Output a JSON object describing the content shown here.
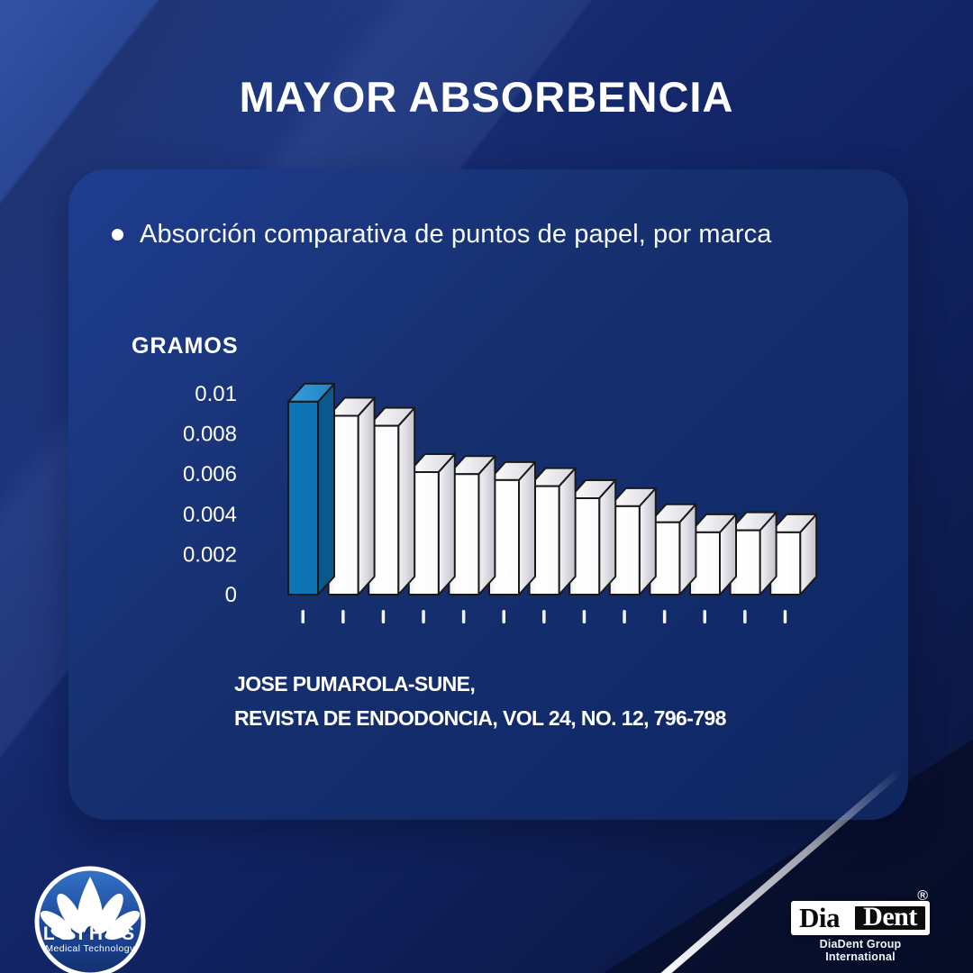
{
  "page": {
    "title": "MAYOR ABSORBENCIA"
  },
  "card": {
    "bullet_text": "Absorción comparativa de puntos de papel, por marca",
    "citation_line1": "JOSE PUMAROLA-SUNE,",
    "citation_line2": "REVISTA DE ENDODONCIA, VOL 24, NO. 12, 796-798"
  },
  "chart_data": {
    "type": "bar",
    "title": "Absorción comparativa de puntos de papel, por marca",
    "ylabel": "GRAMOS",
    "unit": "gramos",
    "ylim": [
      0,
      0.01
    ],
    "yticks": [
      0,
      0.002,
      0.004,
      0.006,
      0.008,
      0.01
    ],
    "ytick_labels": [
      "0",
      "0.002",
      "0.004",
      "0.006",
      "0.008",
      "0.01"
    ],
    "x_tick_labels": [
      "",
      "",
      "",
      "",
      "",
      "",
      "",
      "",
      "",
      "",
      "",
      "",
      ""
    ],
    "values": [
      0.0096,
      0.0089,
      0.0084,
      0.0061,
      0.006,
      0.0057,
      0.0054,
      0.0048,
      0.0044,
      0.0036,
      0.0031,
      0.0032,
      0.0031
    ],
    "highlight_index": 0,
    "grid": false,
    "legend_position": "none",
    "style": "3d-bars",
    "note": "first (blue) bar is the highlighted brand; remaining bars are competitor brands, x-axis shows unlabeled tick marks only"
  },
  "colors": {
    "background_navy": "#122465",
    "card_navy": "#16306f",
    "text_white": "#ffffff",
    "highlight_bar_front": "#0e74b6",
    "highlight_bar_top": "#2f93d3",
    "highlight_bar_side": "#0a598e",
    "bar_front": "#fdfdfe",
    "bar_outline": "#191919"
  },
  "footer": {
    "lothus": {
      "name": "LOTHUS",
      "tagline": "Medical Technology"
    },
    "diadent": {
      "part1": "Dia",
      "part2": "Dent",
      "registered": "®",
      "caption": "DiaDent Group International"
    }
  }
}
